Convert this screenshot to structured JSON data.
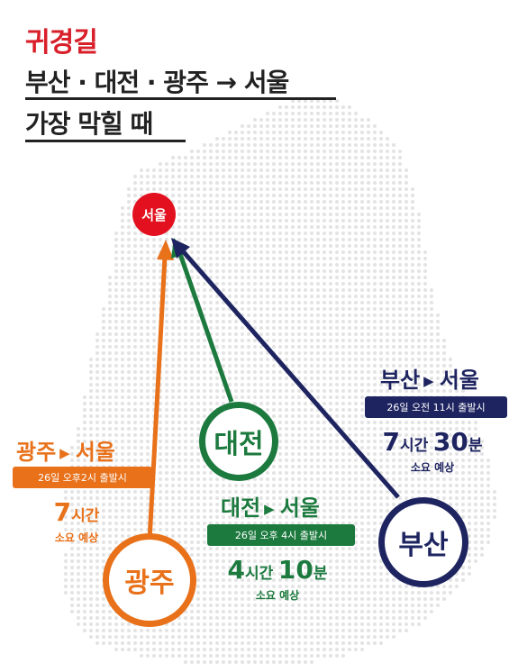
{
  "title": {
    "headline": "귀경길",
    "line1": "부산 · 대전 · 광주 → 서울",
    "line2": "가장 막힐 때"
  },
  "colors": {
    "red": "#d81f2a",
    "orange": "#e8711a",
    "green": "#1c7a3e",
    "navy": "#1e2460",
    "map_dots": "#e3e3e3"
  },
  "destination": {
    "label": "서울"
  },
  "routes": {
    "gwangju": {
      "city": "광주",
      "from": "광주",
      "to": "서울",
      "depart": "26일 오후2시 출발시",
      "hours": "7",
      "hours_unit": "시간",
      "minutes": "",
      "minutes_unit": "",
      "note": "소요 예상"
    },
    "daejeon": {
      "city": "대전",
      "from": "대전",
      "to": "서울",
      "depart": "26일 오후 4시 출발시",
      "hours": "4",
      "hours_unit": "시간",
      "minutes": "10",
      "minutes_unit": "분",
      "note": "소요 예상"
    },
    "busan": {
      "city": "부산",
      "from": "부산",
      "to": "서울",
      "depart": "26일 오전 11시 출발시",
      "hours": "7",
      "hours_unit": "시간",
      "minutes": "30",
      "minutes_unit": "분",
      "note": "소요 예상"
    }
  }
}
